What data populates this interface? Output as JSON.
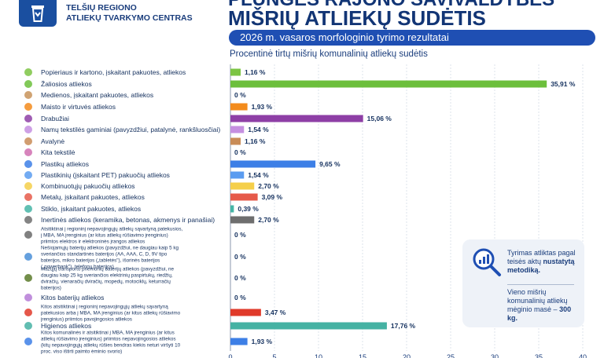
{
  "header": {
    "org_line1": "TELŠIŲ REGIONO",
    "org_line2": "ATLIEKŲ TVARKYMO CENTRAS",
    "title_line1": "PLUNGĖS RAJONO SAVIVALDYBĖS",
    "title_line2": "MIŠRIŲ ATLIEKŲ SUDĖTIS",
    "subtitle": "2026 m. vasaros morfologinio tyrimo rezultatai"
  },
  "info": {
    "text_a_pre": "Tyrimas atliktas pagal teisės aktų",
    "text_a_bold": "nustatytą metodiką.",
    "text_b_pre": "Vieno mišrių komunalinių atliekų mėginio masė –",
    "text_b_bold": "300 kg."
  },
  "chart_data": {
    "type": "bar",
    "orientation": "horizontal",
    "title": "Procentinė tirtų mišrių komunalinių atliekų sudėtis",
    "xlim": [
      0,
      40
    ],
    "xticks": [
      0,
      5,
      10,
      15,
      20,
      25,
      30,
      35,
      40
    ],
    "grid": true,
    "categories": [
      {
        "label": "Popieriaus ir kartono, įskaitant pakuotes, atliekos",
        "value": 1.16,
        "value_label": "1,16 %",
        "color": "#7cc444",
        "icon": "paper-icon"
      },
      {
        "label": "Žaliosios atliekos",
        "value": 35.91,
        "value_label": "35,91 %",
        "color": "#6cbf3c",
        "icon": "leaf-icon"
      },
      {
        "label": "Medienos, įskaitant pakuotes, atliekos",
        "value": 0,
        "value_label": "0 %",
        "color": "#c8935a",
        "icon": "wood-icon"
      },
      {
        "label": "Maisto ir virtuvės atliekos",
        "value": 1.93,
        "value_label": "1,93 %",
        "color": "#f38b1c",
        "icon": "food-icon"
      },
      {
        "label": "Drabužiai",
        "value": 15.06,
        "value_label": "15,06 %",
        "color": "#8e3fa6",
        "icon": "shirt-icon"
      },
      {
        "label": "Namų tekstilės gaminiai (pavyzdžiui, patalynė, rankšluosčiai)",
        "value": 1.54,
        "value_label": "1,54 %",
        "color": "#c58fe0",
        "icon": "textile-icon"
      },
      {
        "label": "Avalynė",
        "value": 1.16,
        "value_label": "1,16 %",
        "color": "#c98c57",
        "icon": "shoe-icon"
      },
      {
        "label": "Kita tekstilė",
        "value": 0,
        "value_label": "0 %",
        "color": "#d06fb0",
        "icon": "yarn-icon"
      },
      {
        "label": "Plastikų atliekos",
        "value": 9.65,
        "value_label": "9,65 %",
        "color": "#3d7fe6",
        "icon": "bottle-icon"
      },
      {
        "label": "Plastikinių (įskaitant PET) pakuočių atliekos",
        "value": 1.54,
        "value_label": "1,54 %",
        "color": "#5b9cf0",
        "icon": "pet-bottle-icon"
      },
      {
        "label": "Kombinuotųjų pakuočių atliekos",
        "value": 2.7,
        "value_label": "2,70 %",
        "color": "#f5cf4a",
        "icon": "carton-icon"
      },
      {
        "label": "Metalų, įskaitant pakuotes, atliekos",
        "value": 3.09,
        "value_label": "3,09 %",
        "color": "#e65a4a",
        "icon": "can-icon"
      },
      {
        "label": "Stiklo, įskaitant pakuotes, atliekos",
        "value": 0.39,
        "value_label": "0,39 %",
        "color": "#45b5a6",
        "icon": "glass-icon"
      },
      {
        "label": "Inertinės atliekos (keramika, betonas, akmenys ir panašiai)",
        "value": 2.7,
        "value_label": "2,70 %",
        "color": "#6e6e6e",
        "icon": "stone-icon"
      },
      {
        "label": "Atsitiktinai į regioninį nepavojingųjų atliekų sąvartyną patekusios, į MBA, MA įrenginius (ar kitus atliekų rūšiavimo įrenginius) priimtos elektros ir elektroninės įrangos atliekos",
        "value": 0,
        "value_label": "0 %",
        "color": "#6a6a6a",
        "icon": "electronics-icon"
      },
      {
        "label": "Nešiojamųjų baterijų atliekos (pavyzdžiui, ne daugiau kaip 5 kg sveriančios standartinės baterijos (AA, AAA, C, D, 9V tipo baterijos, mikro baterijos („tabletės\"), išorinės baterijos („powerbank\"), telefonų baterijos)",
        "value": 0,
        "value_label": "0 %",
        "color": "#4a8fd8",
        "icon": "battery-icon"
      },
      {
        "label": "Mažųjų transporto priemonių baterijų atliekos (pavyzdžiui, ne daugiau kaip 25 kg sveriančios elektrinių paspirtukų, riedžių, dviračių, vienaračių dviračių, mopedų, motociklų, keturračių baterijos)",
        "value": 0,
        "value_label": "0 %",
        "color": "#5a7a2a",
        "icon": "scooter-icon"
      },
      {
        "label": "Kitos baterijų atliekos",
        "value": 0,
        "value_label": "0 %",
        "color": "#b57bd6",
        "icon": "battery-pack-icon"
      },
      {
        "label": "Kitos atsitiktinai į regioninį nepavojingųjų atliekų sąvartyną patekusios arba į MBA, MA įrenginius (ar kitus atliekų rūšiavimo įrenginius) priimtos pavojingosios atliekos",
        "value": 3.47,
        "value_label": "3,47 %",
        "color": "#e03a2a",
        "icon": "hazard-icon"
      },
      {
        "label": "Higienos atliekos",
        "value": 17.76,
        "value_label": "17,76 %",
        "color": "#45b2a3",
        "icon": "diaper-icon"
      },
      {
        "label": "Kitos komunalinės ir atsitiktinai į MBA, MA įrenginius (ar kitus atliekų rūšiavimo įrenginius) priimtos nepavojingosios atliekos (kitų nepavojingųjų atliekų rūšies bendras kiekis neturi viršyti 10 proc. viso ištirti paimto ėminio svorio)",
        "value": 1.93,
        "value_label": "1,93 %",
        "color": "#3d7fe6",
        "icon": "bin-icon"
      }
    ]
  }
}
